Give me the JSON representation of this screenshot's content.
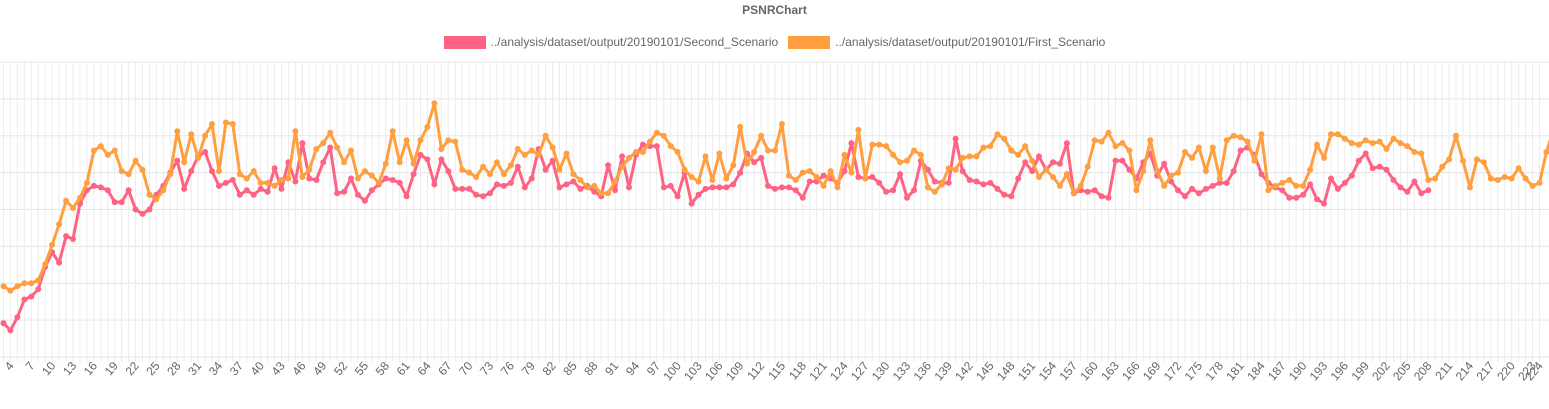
{
  "chart_data": {
    "type": "line",
    "title": "PSNRChart",
    "legend_position": "top",
    "grid": true,
    "y_hidden": true,
    "ylim": [
      20,
      40
    ],
    "x_start": 3,
    "x_end": 224,
    "x_tick_labels": [
      4,
      7,
      10,
      13,
      16,
      19,
      22,
      25,
      28,
      31,
      34,
      37,
      40,
      43,
      46,
      49,
      52,
      55,
      58,
      61,
      64,
      67,
      70,
      73,
      76,
      79,
      82,
      85,
      88,
      91,
      94,
      97,
      100,
      103,
      106,
      109,
      112,
      115,
      118,
      121,
      124,
      127,
      130,
      133,
      136,
      139,
      142,
      145,
      148,
      151,
      154,
      157,
      160,
      163,
      166,
      169,
      172,
      175,
      178,
      181,
      184,
      187,
      190,
      193,
      196,
      199,
      202,
      205,
      208,
      211,
      214,
      217,
      220,
      223,
      224
    ],
    "series": [
      {
        "name": "../analysis/dataset/output/20190101/Second_Scenario",
        "color": "#ff6384",
        "start": 3,
        "values": [
          22.3,
          21.8,
          22.7,
          23.9,
          24.1,
          24.6,
          26.1,
          27.1,
          26.4,
          28.2,
          28.0,
          30.4,
          31.3,
          31.6,
          31.5,
          31.3,
          30.5,
          30.5,
          31.3,
          30.0,
          29.7,
          30.0,
          31.0,
          31.6,
          32.5,
          33.3,
          31.4,
          32.6,
          33.6,
          33.9,
          32.6,
          31.6,
          31.8,
          32.0,
          31.0,
          31.3,
          31.0,
          31.4,
          31.2,
          32.8,
          31.4,
          33.2,
          31.9,
          34.5,
          32.1,
          32.0,
          33.2,
          34.2,
          31.1,
          31.2,
          32.1,
          31.0,
          30.6,
          31.3,
          31.7,
          32.1,
          32.0,
          31.8,
          30.9,
          32.4,
          33.7,
          33.4,
          31.7,
          33.4,
          32.6,
          31.4,
          31.4,
          31.4,
          31.0,
          30.9,
          31.1,
          31.7,
          31.6,
          31.8,
          32.9,
          31.5,
          32.1,
          34.1,
          32.7,
          33.3,
          31.5,
          31.7,
          31.9,
          31.4,
          31.6,
          31.2,
          30.9,
          33.0,
          31.3,
          33.6,
          31.5,
          33.7,
          34.4,
          34.3,
          34.3,
          31.5,
          31.6,
          30.9,
          32.5,
          30.4,
          31.0,
          31.4,
          31.5,
          31.5,
          31.5,
          31.7,
          32.5,
          33.8,
          33.2,
          33.5,
          31.6,
          31.4,
          31.5,
          31.5,
          31.3,
          30.8,
          31.9,
          31.9,
          32.3,
          32.1,
          31.8,
          32.6,
          34.5,
          32.2,
          32.1,
          32.2,
          31.8,
          31.2,
          31.3,
          32.4,
          30.8,
          31.3,
          33.3,
          32.7,
          31.9,
          31.8,
          31.8,
          34.8,
          32.6,
          32.0,
          31.9,
          31.7,
          31.8,
          31.4,
          31.0,
          30.9,
          32.1,
          33.2,
          32.6,
          33.6,
          32.7,
          33.2,
          33.1,
          34.5,
          31.1,
          31.3,
          31.2,
          31.3,
          30.9,
          30.8,
          33.3,
          33.3,
          32.7,
          32.1,
          33.2,
          33.8,
          32.3,
          33.1,
          31.9,
          31.3,
          30.9,
          31.4,
          31.1,
          31.4,
          31.6,
          31.8,
          31.8,
          32.6,
          34.0,
          34.2,
          33.7,
          32.4,
          31.8,
          31.5,
          31.3,
          30.8,
          30.8,
          31.0,
          31.7,
          30.7,
          30.4,
          32.1,
          31.4,
          31.8,
          32.3,
          33.3,
          33.8,
          32.8,
          32.9,
          32.7,
          32.0,
          31.5,
          31.2,
          31.9,
          31.1,
          31.3
        ]
      },
      {
        "name": "../analysis/dataset/output/20190101/First_Scenario",
        "color": "#ff9f40",
        "start": 3,
        "values": [
          24.8,
          24.5,
          24.8,
          25.0,
          25.0,
          25.2,
          26.3,
          27.6,
          29.0,
          30.6,
          30.1,
          30.8,
          31.8,
          34.0,
          34.3,
          33.7,
          34.0,
          32.6,
          32.4,
          33.3,
          32.7,
          31.0,
          30.7,
          31.3,
          32.4,
          35.3,
          33.2,
          35.1,
          33.5,
          35.0,
          35.8,
          32.6,
          35.9,
          35.8,
          32.4,
          32.1,
          32.6,
          31.8,
          31.8,
          31.6,
          32.0,
          32.1,
          35.3,
          32.2,
          32.7,
          34.1,
          34.5,
          35.2,
          34.2,
          33.2,
          34.0,
          32.1,
          32.6,
          32.3,
          31.8,
          33.1,
          35.3,
          33.2,
          34.7,
          33.1,
          34.7,
          35.6,
          37.2,
          34.1,
          34.7,
          34.6,
          32.7,
          32.5,
          32.2,
          32.9,
          32.4,
          33.2,
          32.4,
          33.0,
          34.1,
          33.7,
          34.0,
          33.7,
          35.0,
          34.2,
          32.7,
          33.8,
          32.4,
          32.0,
          31.5,
          31.6,
          31.1,
          31.1,
          31.9,
          32.9,
          33.5,
          33.9,
          33.9,
          34.6,
          35.2,
          35.0,
          34.3,
          33.9,
          32.7,
          32.2,
          31.9,
          33.6,
          32.0,
          33.8,
          32.1,
          33.0,
          35.6,
          33.1,
          33.9,
          35.0,
          34.0,
          34.0,
          35.8,
          32.3,
          32.0,
          32.5,
          32.6,
          32.2,
          31.6,
          32.6,
          31.5,
          33.7,
          32.5,
          35.4,
          32.1,
          34.4,
          34.4,
          34.3,
          33.7,
          33.2,
          33.3,
          34.0,
          33.7,
          31.5,
          31.2,
          31.7,
          32.8,
          32.7,
          33.5,
          33.6,
          33.6,
          34.2,
          34.3,
          35.1,
          34.8,
          34.0,
          33.7,
          34.3,
          33.3,
          32.2,
          32.7,
          32.2,
          31.6,
          32.4,
          31.1,
          31.6,
          32.9,
          34.7,
          34.6,
          35.2,
          34.3,
          34.5,
          34.0,
          31.3,
          32.6,
          34.7,
          32.6,
          31.6,
          32.3,
          32.5,
          33.9,
          33.5,
          34.2,
          32.6,
          34.2,
          32.1,
          34.7,
          35.0,
          34.9,
          34.6,
          33.3,
          35.1,
          31.3,
          31.6,
          31.8,
          32.0,
          31.6,
          31.6,
          32.7,
          34.4,
          33.5,
          35.1,
          35.1,
          34.8,
          34.5,
          34.4,
          34.7,
          34.5,
          34.6,
          34.1,
          34.8,
          34.5,
          34.3,
          33.9,
          33.8,
          32.0,
          32.1,
          32.9,
          33.4,
          35.0,
          33.3,
          31.5,
          33.4,
          33.2,
          32.1,
          32.0,
          32.2,
          32.1,
          32.8,
          32.1,
          31.6,
          31.8,
          33.9,
          35.4,
          32.0,
          32.8,
          32.7,
          31.9,
          32.1
        ]
      }
    ]
  }
}
